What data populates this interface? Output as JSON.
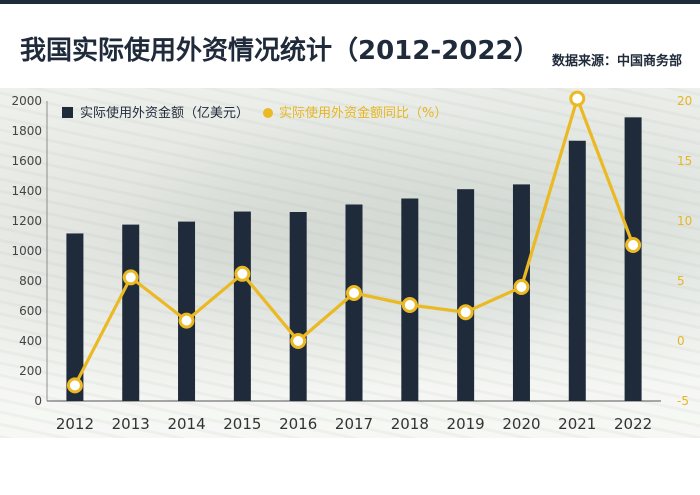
{
  "header": {
    "title": "我国实际使用外资情况统计（2012-2022）",
    "source": "数据来源：中国商务部"
  },
  "colors": {
    "bar": "#1f2a3a",
    "line": "#eab923",
    "text_dark": "#1f2a3a"
  },
  "chart_data": {
    "type": "bar+line",
    "categories": [
      "2012",
      "2013",
      "2014",
      "2015",
      "2016",
      "2017",
      "2018",
      "2019",
      "2020",
      "2021",
      "2022"
    ],
    "series": [
      {
        "name": "实际使用外资金额（亿美元）",
        "type": "bar",
        "axis": "left",
        "values": [
          1117,
          1176,
          1196,
          1263,
          1260,
          1310,
          1350,
          1412,
          1444,
          1735,
          1891
        ]
      },
      {
        "name": "实际使用外资金额同比（%）",
        "type": "line",
        "axis": "right",
        "values": [
          -3.7,
          5.3,
          1.7,
          5.6,
          0.0,
          4.0,
          3.0,
          2.4,
          4.5,
          20.2,
          8.0
        ]
      }
    ],
    "y_left": {
      "min": 0,
      "max": 2000,
      "ticks": [
        0,
        200,
        400,
        600,
        800,
        1000,
        1200,
        1400,
        1600,
        1800,
        2000
      ]
    },
    "y_right": {
      "min": -5,
      "max": 20,
      "ticks": [
        -5,
        0,
        5,
        10,
        15,
        20
      ]
    },
    "legend_position": "top-left",
    "grid": false
  }
}
